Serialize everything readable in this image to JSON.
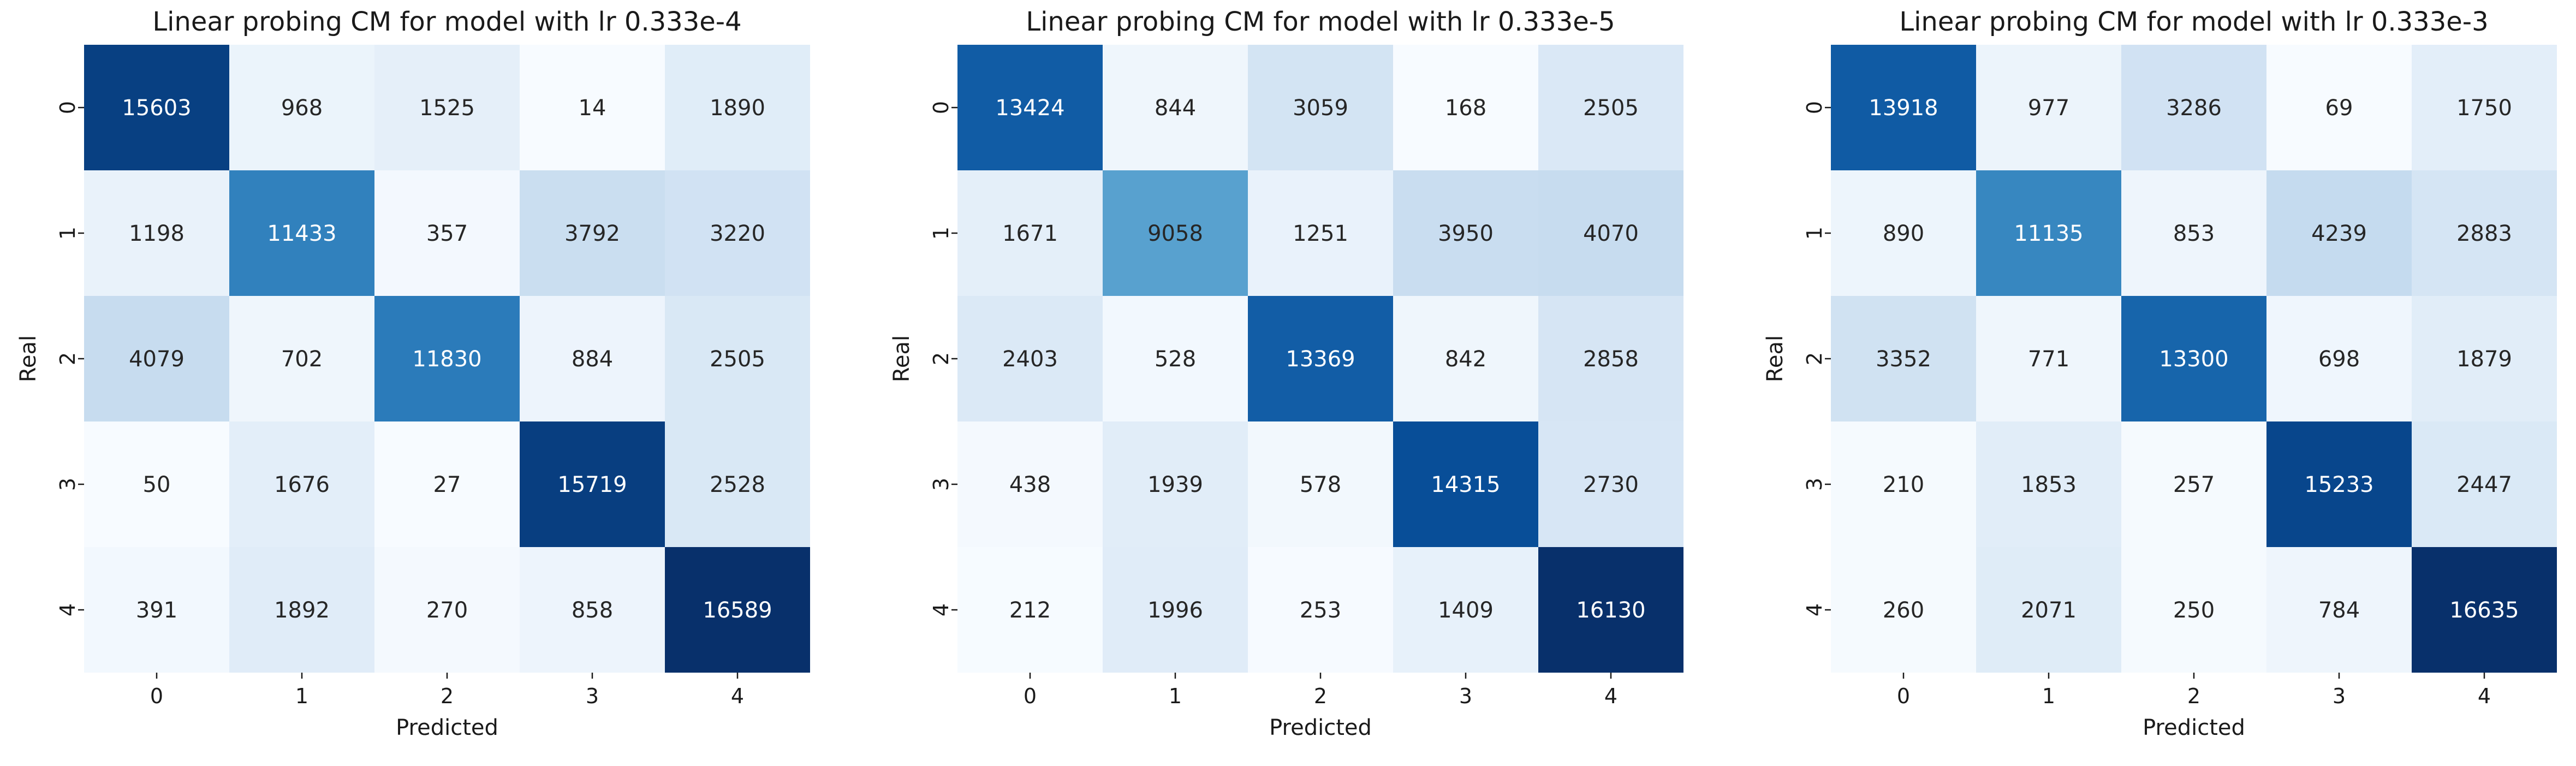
{
  "chart_data": [
    {
      "type": "heatmap",
      "title": "Linear probing CM for model with lr 0.333e-4",
      "xlabel": "Predicted",
      "ylabel": "Real",
      "x_ticks": [
        "0",
        "1",
        "2",
        "3",
        "4"
      ],
      "y_ticks": [
        "0",
        "1",
        "2",
        "3",
        "4"
      ],
      "colormap": "Blues",
      "colorbar": false,
      "values": [
        [
          15603,
          968,
          1525,
          14,
          1890
        ],
        [
          1198,
          11433,
          357,
          3792,
          3220
        ],
        [
          4079,
          702,
          11830,
          884,
          2505
        ],
        [
          50,
          1676,
          27,
          15719,
          2528
        ],
        [
          391,
          1892,
          270,
          858,
          16589
        ]
      ]
    },
    {
      "type": "heatmap",
      "title": "Linear probing CM for model with lr 0.333e-5",
      "xlabel": "Predicted",
      "ylabel": "Real",
      "x_ticks": [
        "0",
        "1",
        "2",
        "3",
        "4"
      ],
      "y_ticks": [
        "0",
        "1",
        "2",
        "3",
        "4"
      ],
      "colormap": "Blues",
      "colorbar": false,
      "values": [
        [
          13424,
          844,
          3059,
          168,
          2505
        ],
        [
          1671,
          9058,
          1251,
          3950,
          4070
        ],
        [
          2403,
          528,
          13369,
          842,
          2858
        ],
        [
          438,
          1939,
          578,
          14315,
          2730
        ],
        [
          212,
          1996,
          253,
          1409,
          16130
        ]
      ]
    },
    {
      "type": "heatmap",
      "title": "Linear probing CM for model with lr 0.333e-3",
      "xlabel": "Predicted",
      "ylabel": "Real",
      "x_ticks": [
        "0",
        "1",
        "2",
        "3",
        "4"
      ],
      "y_ticks": [
        "0",
        "1",
        "2",
        "3",
        "4"
      ],
      "colormap": "Blues",
      "colorbar": false,
      "values": [
        [
          13918,
          977,
          3286,
          69,
          1750
        ],
        [
          890,
          11135,
          853,
          4239,
          2883
        ],
        [
          3352,
          771,
          13300,
          698,
          1879
        ],
        [
          210,
          1853,
          257,
          15233,
          2447
        ],
        [
          260,
          2071,
          250,
          784,
          16635
        ]
      ]
    }
  ]
}
